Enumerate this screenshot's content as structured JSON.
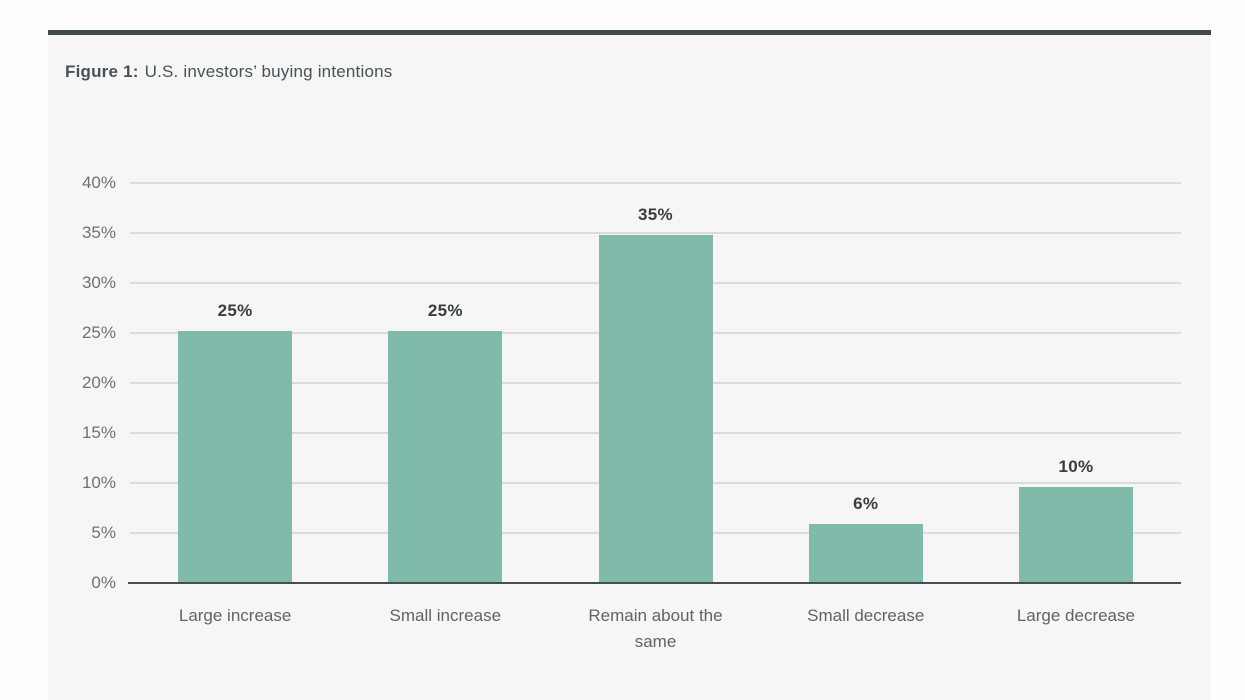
{
  "figure": {
    "number_label": "Figure 1:",
    "caption": "U.S. investors’ buying intentions"
  },
  "colors": {
    "bar_fill": "#7fbaab",
    "panel_background": "#f5f6f5",
    "panel_top_rule": "#3e4a4c",
    "gridline": "#d9dcdb",
    "axis_line": "#454e50",
    "title_text": "#475258",
    "tick_text": "#6c7275",
    "category_text": "#5e6468",
    "value_label_text": "#383d40"
  },
  "chart_data": {
    "type": "bar",
    "title": "Figure 1: U.S. investors’ buying intentions",
    "categories": [
      "Large increase",
      "Small increase",
      "Remain about the same",
      "Small decrease",
      "Large decrease"
    ],
    "values": [
      25,
      25,
      35,
      6,
      10
    ],
    "data_labels": [
      "25%",
      "25%",
      "35%",
      "6%",
      "10%"
    ],
    "rendered_bar_values": [
      25.2,
      25.2,
      34.8,
      5.9,
      9.6
    ],
    "xlabel": "",
    "ylabel": "",
    "ylim": [
      0,
      40
    ],
    "ytick_values": [
      0,
      5,
      10,
      15,
      20,
      25,
      30,
      35,
      40
    ],
    "ytick_labels": [
      "0%",
      "5%",
      "10%",
      "15%",
      "20%",
      "25%",
      "30%",
      "35%",
      "40%"
    ],
    "grid": true,
    "legend": false,
    "bar_color": "#7fbaab"
  }
}
